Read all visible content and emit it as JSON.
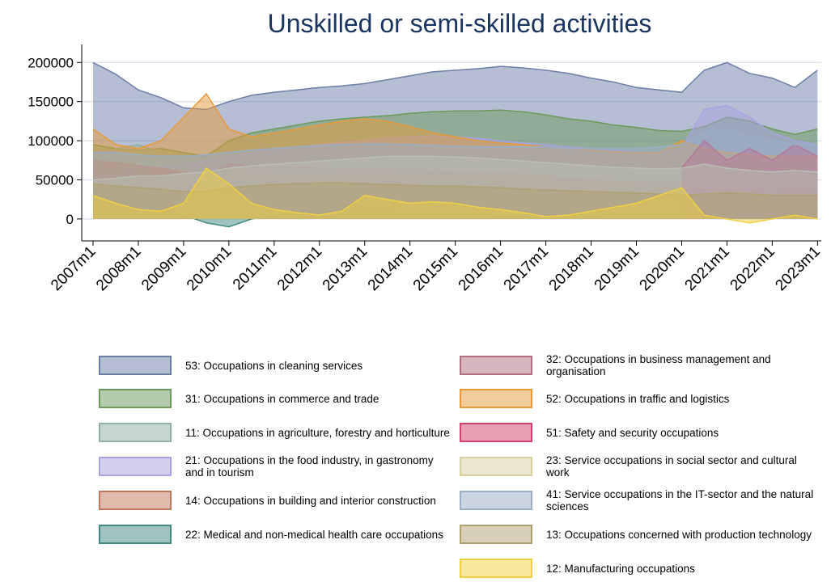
{
  "chart_data": {
    "type": "area",
    "title": "Unskilled or semi-skilled activities",
    "x": [
      "2007m1",
      "2007m7",
      "2008m1",
      "2008m7",
      "2009m1",
      "2009m7",
      "2010m1",
      "2010m7",
      "2011m1",
      "2011m7",
      "2012m1",
      "2012m7",
      "2013m1",
      "2013m7",
      "2014m1",
      "2014m7",
      "2015m1",
      "2015m7",
      "2016m1",
      "2016m7",
      "2017m1",
      "2017m7",
      "2018m1",
      "2018m7",
      "2019m1",
      "2019m7",
      "2020m1",
      "2020m7",
      "2021m1",
      "2021m7",
      "2022m1",
      "2022m7",
      "2023m1"
    ],
    "xlim": [
      "2006m10",
      "2023m2"
    ],
    "xticks": [
      "2007m1",
      "2008m1",
      "2009m1",
      "2010m1",
      "2011m1",
      "2012m1",
      "2013m1",
      "2014m1",
      "2015m1",
      "2016m1",
      "2017m1",
      "2018m1",
      "2019m1",
      "2020m1",
      "2021m1",
      "2022m1",
      "2023m1"
    ],
    "ylim": [
      -28000,
      223000
    ],
    "yticks": [
      0,
      50000,
      100000,
      150000,
      200000
    ],
    "grid": true,
    "series": [
      {
        "name": "53: Occupations in cleaning services",
        "color": "#6b7ea6",
        "values": [
          200000,
          185000,
          165000,
          155000,
          142000,
          140000,
          150000,
          158000,
          162000,
          165000,
          168000,
          170000,
          173000,
          178000,
          183000,
          188000,
          190000,
          192000,
          195000,
          193000,
          190000,
          186000,
          180000,
          175000,
          168000,
          165000,
          162000,
          190000,
          200000,
          186000,
          180000,
          168000,
          190000
        ]
      },
      {
        "name": "31: Occupations in commerce and trade",
        "color": "#6b9a5a",
        "values": [
          95000,
          90000,
          88000,
          90000,
          85000,
          80000,
          100000,
          110000,
          115000,
          120000,
          125000,
          128000,
          130000,
          132000,
          135000,
          137000,
          138000,
          138000,
          139000,
          137000,
          133000,
          128000,
          125000,
          120000,
          117000,
          113000,
          112000,
          118000,
          130000,
          125000,
          115000,
          108000,
          115000
        ]
      },
      {
        "name": "11: Occupations in agriculture, forestry and horticulture",
        "color": "#8fb0a0",
        "values": [
          80000,
          90000,
          95000,
          85000,
          80000,
          70000,
          65000,
          62000,
          60000,
          60000,
          62000,
          63000,
          65000,
          66000,
          67000,
          68000,
          68000,
          67000,
          65000,
          63000,
          60000,
          57000,
          55000,
          52000,
          50000,
          48000,
          47000,
          45000,
          45000,
          44000,
          43000,
          42000,
          42000
        ]
      },
      {
        "name": "21: Occupations in the food industry, in gastronomy and in tourism",
        "color": "#a7a2e0",
        "values": [
          60000,
          62000,
          65000,
          68000,
          70000,
          75000,
          80000,
          85000,
          88000,
          92000,
          95000,
          98000,
          100000,
          103000,
          105000,
          106000,
          105000,
          103000,
          100000,
          97000,
          95000,
          92000,
          90000,
          88000,
          86000,
          85000,
          90000,
          140000,
          145000,
          130000,
          110000,
          100000,
          95000
        ]
      },
      {
        "name": "14: Occupations in building and interior construction",
        "color": "#c0785a",
        "values": [
          70000,
          72000,
          68000,
          65000,
          60000,
          58000,
          62000,
          60000,
          58000,
          57000,
          56000,
          57000,
          58000,
          58000,
          57000,
          56000,
          55000,
          55000,
          54000,
          53000,
          52000,
          50000,
          48000,
          45000,
          43000,
          40000,
          38000,
          37000,
          38000,
          36000,
          35000,
          38000,
          35000
        ]
      },
      {
        "name": "22: Medical and non-medical health care occupations",
        "color": "#3f8a80",
        "values": [
          30000,
          28000,
          20000,
          12000,
          5000,
          -5000,
          -10000,
          0,
          5000,
          8000,
          9000,
          10000,
          10000,
          9000,
          8000,
          8000,
          7000,
          6000,
          5000,
          4000,
          3000,
          4000,
          5000,
          6000,
          7000,
          8000,
          8000,
          8000,
          7000,
          8000,
          9000,
          10000,
          10000
        ]
      },
      {
        "name": "32: Occupations in business management and organisation",
        "color": "#b07080",
        "values": [
          75000,
          72000,
          68000,
          62000,
          58000,
          55000,
          70000,
          68000,
          67000,
          66000,
          65000,
          64000,
          63000,
          63000,
          62000,
          61000,
          60000,
          59000,
          58000,
          57000,
          55000,
          52000,
          50000,
          48000,
          47000,
          45000,
          44000,
          50000,
          55000,
          52000,
          50000,
          52000,
          45000
        ]
      },
      {
        "name": "52: Occupations in traffic and logistics",
        "color": "#e89a3a",
        "values": [
          115000,
          95000,
          90000,
          100000,
          130000,
          160000,
          115000,
          105000,
          110000,
          115000,
          120000,
          125000,
          128000,
          125000,
          118000,
          110000,
          105000,
          100000,
          97000,
          95000,
          92000,
          90000,
          88000,
          86000,
          85000,
          85000,
          100000,
          90000,
          85000,
          82000,
          80000,
          80000,
          80000
        ]
      },
      {
        "name": "51: Safety and security occupations",
        "color": "#d0406a",
        "values": [
          null,
          null,
          null,
          null,
          null,
          null,
          null,
          null,
          null,
          null,
          null,
          null,
          null,
          null,
          null,
          null,
          null,
          null,
          null,
          null,
          null,
          null,
          null,
          null,
          null,
          null,
          65000,
          100000,
          75000,
          90000,
          75000,
          95000,
          80000
        ]
      },
      {
        "name": "23: Service occupations in social sector and cultural work",
        "color": "#d8d0a0",
        "values": [
          50000,
          52000,
          55000,
          55000,
          58000,
          60000,
          65000,
          68000,
          70000,
          72000,
          74000,
          76000,
          78000,
          80000,
          80000,
          80000,
          79000,
          78000,
          76000,
          74000,
          72000,
          70000,
          68000,
          66000,
          65000,
          64000,
          65000,
          70000,
          65000,
          62000,
          60000,
          62000,
          60000
        ]
      },
      {
        "name": "41: Service occupations in the IT-sector and the natural sciences",
        "color": "#9aaec8",
        "values": [
          85000,
          85000,
          82000,
          80000,
          80000,
          82000,
          85000,
          88000,
          90000,
          92000,
          94000,
          95000,
          96000,
          96000,
          95000,
          94000,
          93000,
          92000,
          92000,
          92000,
          92000,
          90000,
          90000,
          90000,
          90000,
          92000,
          95000,
          110000,
          115000,
          105000,
          100000,
          95000,
          95000
        ]
      },
      {
        "name": "13: Occupations concerned with production technology",
        "color": "#b0a070",
        "values": [
          45000,
          42000,
          40000,
          38000,
          35000,
          35000,
          40000,
          42000,
          44000,
          45000,
          46000,
          46000,
          45000,
          44000,
          43000,
          42000,
          42000,
          41000,
          40000,
          38000,
          37000,
          36000,
          35000,
          34000,
          33000,
          32000,
          30000,
          32000,
          33000,
          32000,
          30000,
          30000,
          30000
        ]
      },
      {
        "name": "12: Manufacturing occupations",
        "color": "#f0d040",
        "values": [
          30000,
          20000,
          12000,
          10000,
          20000,
          65000,
          45000,
          20000,
          12000,
          8000,
          5000,
          10000,
          30000,
          25000,
          20000,
          22000,
          20000,
          15000,
          12000,
          8000,
          3000,
          5000,
          10000,
          15000,
          20000,
          30000,
          40000,
          5000,
          0,
          -5000,
          0,
          5000,
          0
        ]
      }
    ]
  }
}
